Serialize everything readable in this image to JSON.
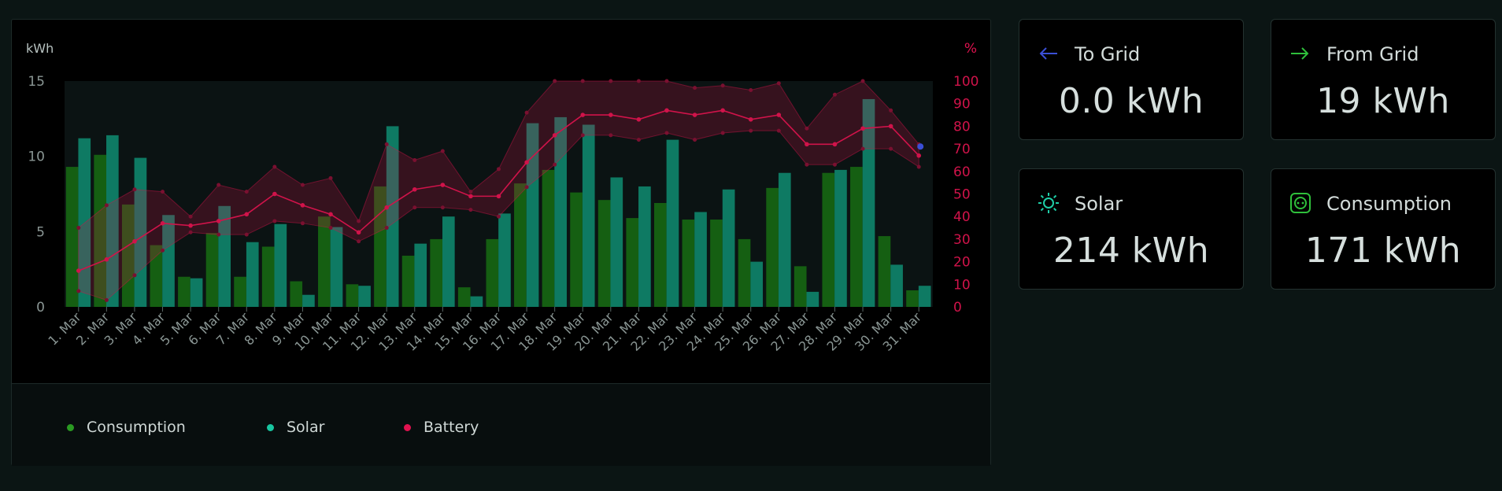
{
  "stats": {
    "to_grid": {
      "title": "To Grid",
      "value": "0.0 kWh",
      "icon": "arrow-left-icon",
      "color": "#3a4fd6"
    },
    "from_grid": {
      "title": "From Grid",
      "value": "19 kWh",
      "icon": "arrow-right-icon",
      "color": "#2fbf3b"
    },
    "solar": {
      "title": "Solar",
      "value": "214 kWh",
      "icon": "sun-icon",
      "color": "#1fcfa8"
    },
    "consumption": {
      "title": "Consumption",
      "value": "171 kWh",
      "icon": "plug-icon",
      "color": "#2fbf3b"
    }
  },
  "legend": {
    "consumption": {
      "label": "Consumption",
      "color": "#2a9a22"
    },
    "solar": {
      "label": "Solar",
      "color": "#18c6a0"
    },
    "battery": {
      "label": "Battery",
      "color": "#e0124f"
    }
  },
  "chart_data": {
    "type": "bar",
    "left_axis_label": "kWh",
    "right_axis_label": "%",
    "ylim_left": [
      0,
      15
    ],
    "ylim_right": [
      0,
      100
    ],
    "left_ticks": [
      0,
      5,
      10,
      15
    ],
    "right_ticks": [
      0,
      10,
      20,
      30,
      40,
      50,
      60,
      70,
      80,
      90,
      100
    ],
    "categories": [
      "1. Mar",
      "2. Mar",
      "3. Mar",
      "4. Mar",
      "5. Mar",
      "6. Mar",
      "7. Mar",
      "8. Mar",
      "9. Mar",
      "10. Mar",
      "11. Mar",
      "12. Mar",
      "13. Mar",
      "14. Mar",
      "15. Mar",
      "16. Mar",
      "17. Mar",
      "18. Mar",
      "19. Mar",
      "20. Mar",
      "21. Mar",
      "22. Mar",
      "23. Mar",
      "24. Mar",
      "25. Mar",
      "26. Mar",
      "27. Mar",
      "28. Mar",
      "29. Mar",
      "30. Mar",
      "31. Mar"
    ],
    "series": [
      {
        "name": "Consumption",
        "axis": "left",
        "color": "#155f12",
        "values": [
          9.3,
          10.1,
          6.8,
          4.1,
          2.0,
          4.9,
          2.0,
          4.0,
          1.7,
          6.0,
          1.5,
          8.0,
          3.4,
          4.5,
          1.3,
          4.5,
          8.2,
          9.1,
          7.6,
          7.1,
          5.9,
          6.9,
          5.8,
          5.8,
          4.5,
          7.9,
          2.7,
          8.9,
          9.3,
          4.7,
          1.1
        ]
      },
      {
        "name": "Solar",
        "axis": "left",
        "color": "#0e7a63",
        "values": [
          11.2,
          11.4,
          9.9,
          6.1,
          1.9,
          6.7,
          4.3,
          5.5,
          0.8,
          5.3,
          1.4,
          12.0,
          4.2,
          6.0,
          0.7,
          6.2,
          12.2,
          12.6,
          12.1,
          8.6,
          8.0,
          11.1,
          6.3,
          7.8,
          3.0,
          8.9,
          1.0,
          9.1,
          13.8,
          2.8,
          1.4
        ]
      },
      {
        "name": "Battery",
        "axis": "right",
        "color": "#d0134a",
        "values": [
          16,
          21,
          29,
          37,
          36,
          38,
          41,
          50,
          45,
          41,
          33,
          44,
          52,
          54,
          49,
          49,
          64,
          76,
          85,
          85,
          83,
          87,
          85,
          87,
          83,
          85,
          72,
          72,
          79,
          80,
          67
        ],
        "min": [
          7,
          3,
          14,
          25,
          33,
          32,
          32,
          38,
          37,
          35,
          29,
          35,
          44,
          44,
          43,
          40,
          53,
          63,
          76,
          76,
          74,
          77,
          74,
          77,
          78,
          78,
          63,
          63,
          70,
          70,
          62
        ],
        "max": [
          35,
          45,
          52,
          51,
          40,
          54,
          51,
          62,
          54,
          57,
          38,
          72,
          65,
          69,
          51,
          61,
          86,
          100,
          100,
          100,
          100,
          100,
          97,
          98,
          96,
          99,
          79,
          94,
          100,
          87,
          72
        ]
      }
    ],
    "end_marker_color": "#3a4fd6"
  }
}
